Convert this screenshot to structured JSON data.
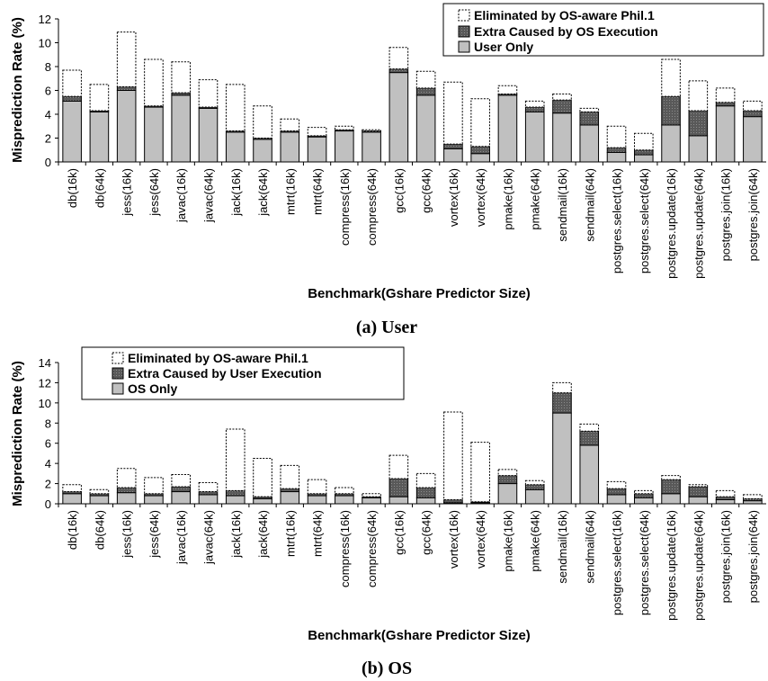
{
  "colors": {
    "user_only": "#c0c0c0",
    "extra": "#595959",
    "eliminated_fill": "#ffffff",
    "edge": "#000000"
  },
  "chart_data": [
    {
      "type": "bar",
      "stacked": true,
      "caption": "(a) User",
      "xlabel": "Benchmark(Gshare Predictor Size)",
      "ylabel": "Misprediction Rate (%)",
      "ylim": [
        0,
        12
      ],
      "yticks": [
        0,
        2,
        4,
        6,
        8,
        10,
        12
      ],
      "legend_position": "top-right",
      "categories": [
        "db(16k)",
        "db(64k)",
        "jess(16k)",
        "jess(64k)",
        "javac(16k)",
        "javac(64k)",
        "jack(16k)",
        "jack(64k)",
        "mtrt(16k)",
        "mtrt(64k)",
        "compress(16k)",
        "compress(64k)",
        "gcc(16k)",
        "gcc(64k)",
        "vortex(16k)",
        "vortex(64k)",
        "pmake(16k)",
        "pmake(64k)",
        "sendmail(16k)",
        "sendmail(64k)",
        "postgres.select(16k)",
        "postgres.select(64k)",
        "postgres.update(16k)",
        "postgres.update(64k)",
        "postgres.join(16k)",
        "postgres.join(64k)"
      ],
      "series": [
        {
          "name": "User Only",
          "values": [
            5.1,
            4.2,
            6.0,
            4.6,
            5.6,
            4.5,
            2.5,
            1.9,
            2.5,
            2.1,
            2.6,
            2.5,
            7.5,
            5.6,
            1.1,
            0.7,
            5.6,
            4.2,
            4.1,
            3.1,
            0.8,
            0.6,
            3.1,
            2.2,
            4.7,
            3.8
          ]
        },
        {
          "name": "Extra Caused by OS Execution",
          "values": [
            0.4,
            0.1,
            0.3,
            0.1,
            0.2,
            0.1,
            0.1,
            0.1,
            0.1,
            0.1,
            0.1,
            0.1,
            0.3,
            0.6,
            0.4,
            0.6,
            0.1,
            0.4,
            1.1,
            1.1,
            0.4,
            0.4,
            2.4,
            2.1,
            0.3,
            0.5
          ]
        },
        {
          "name": "Eliminated by OS-aware Phil.1",
          "values": [
            2.2,
            2.2,
            4.6,
            3.9,
            2.6,
            2.3,
            3.9,
            2.7,
            1.0,
            0.7,
            0.3,
            0.1,
            1.8,
            1.4,
            5.2,
            4.0,
            0.7,
            0.5,
            0.5,
            0.3,
            1.8,
            1.4,
            3.1,
            2.5,
            1.2,
            0.8
          ]
        }
      ]
    },
    {
      "type": "bar",
      "stacked": true,
      "caption": "(b) OS",
      "xlabel": "Benchmark(Gshare Predictor Size)",
      "ylabel": "Misprediction Rate (%)",
      "ylim": [
        0,
        14
      ],
      "yticks": [
        0,
        2,
        4,
        6,
        8,
        10,
        12,
        14
      ],
      "legend_position": "top-left",
      "categories": [
        "db(16k)",
        "db(64k)",
        "jess(16k)",
        "jess(64k)",
        "javac(16k)",
        "javac(64k)",
        "jack(16k)",
        "jack(64k)",
        "mtrt(16k)",
        "mtrt(64k)",
        "compress(16k)",
        "compress(64k)",
        "gcc(16k)",
        "gcc(64k)",
        "vortex(16k)",
        "vortex(64k)",
        "pmake(16k)",
        "pmake(64k)",
        "sendmail(16k)",
        "sendmail(64k)",
        "postgres.select(16k)",
        "postgres.select(64k)",
        "postgres.update(16k)",
        "postgres.update(64k)",
        "postgres.join(16k)",
        "postgres.join(64k)"
      ],
      "series": [
        {
          "name": "OS Only",
          "values": [
            1.0,
            0.8,
            1.1,
            0.8,
            1.2,
            0.9,
            0.8,
            0.5,
            1.2,
            0.8,
            0.8,
            0.6,
            0.7,
            0.6,
            0.1,
            0.1,
            2.0,
            1.4,
            9.0,
            5.8,
            0.9,
            0.6,
            1.0,
            0.7,
            0.4,
            0.3
          ]
        },
        {
          "name": "Extra Caused by User Execution",
          "values": [
            0.2,
            0.2,
            0.5,
            0.2,
            0.5,
            0.3,
            0.5,
            0.2,
            0.3,
            0.2,
            0.2,
            0.1,
            1.8,
            1.0,
            0.3,
            0.1,
            0.8,
            0.5,
            2.0,
            1.4,
            0.6,
            0.4,
            1.4,
            1.0,
            0.3,
            0.2
          ]
        },
        {
          "name": "Eliminated by OS-aware Phil.1",
          "values": [
            0.7,
            0.4,
            1.9,
            1.6,
            1.2,
            0.9,
            6.1,
            3.8,
            2.3,
            1.4,
            0.6,
            0.3,
            2.3,
            1.4,
            8.7,
            5.9,
            0.6,
            0.4,
            1.0,
            0.7,
            0.7,
            0.3,
            0.4,
            0.2,
            0.6,
            0.4
          ]
        }
      ]
    }
  ]
}
